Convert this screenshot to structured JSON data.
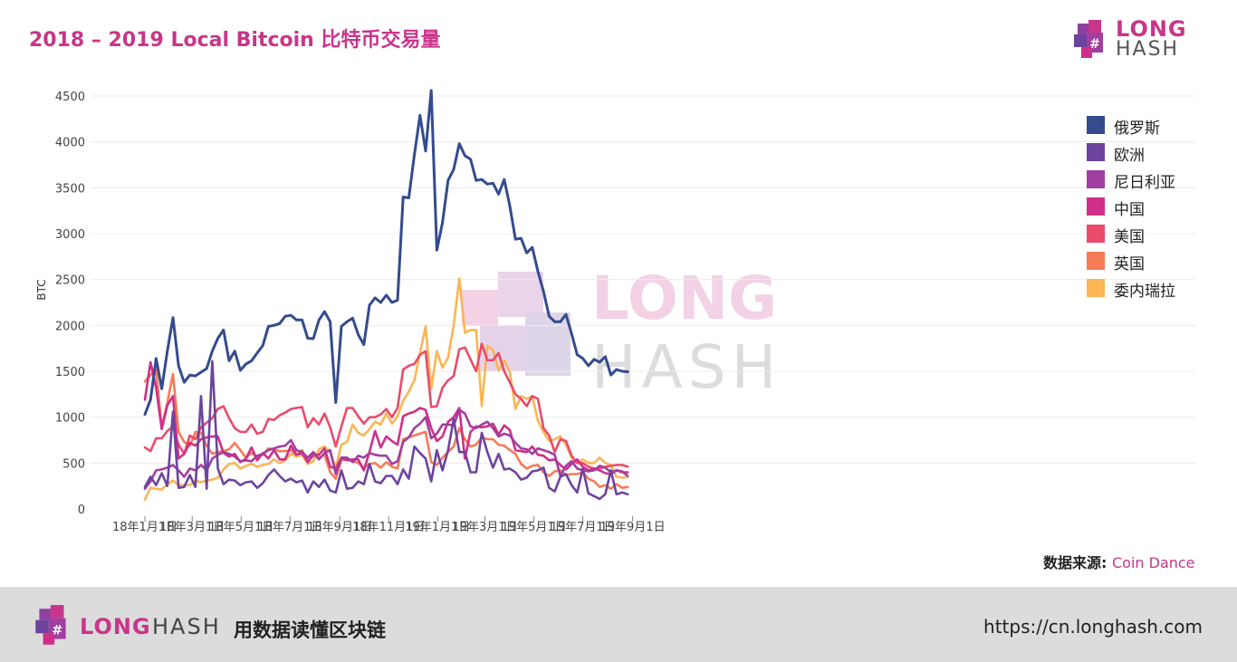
{
  "header": {
    "title": "2018 – 2019 Local Bitcoin 比特币交易量"
  },
  "logo": {
    "brand_long": "LONG",
    "brand_hash": "HASH"
  },
  "watermark": {
    "long": "LONG",
    "hash": "HASH"
  },
  "source": {
    "label": "数据来源: ",
    "value": "Coin Dance"
  },
  "footer": {
    "brand_long": "LONG",
    "brand_hash": "HASH",
    "slogan": "用数据读懂区块链",
    "url": "https://cn.longhash.com"
  },
  "colors": {
    "brand": "#c8358a",
    "footer_bg": "#dcdcdc"
  },
  "chart_data": {
    "type": "line",
    "title": "",
    "xlabel": "",
    "ylabel": "BTC",
    "ylim": [
      0,
      4600
    ],
    "yticks": [
      0,
      500,
      1000,
      1500,
      2000,
      2500,
      3000,
      3500,
      4000,
      4500
    ],
    "xticks": [
      {
        "label": "18年1月1日",
        "week": 0
      },
      {
        "label": "18年3月1日",
        "week": 8.43
      },
      {
        "label": "18年5月1日",
        "week": 17.14
      },
      {
        "label": "18年7月1日",
        "week": 25.86
      },
      {
        "label": "18年9月1日",
        "week": 34.71
      },
      {
        "label": "18年11月1日",
        "week": 43.43
      },
      {
        "label": "19年1月1日",
        "week": 52.14
      },
      {
        "label": "19年3月1日",
        "week": 60.57
      },
      {
        "label": "19年5月1日",
        "week": 69.29
      },
      {
        "label": "19年7月1日",
        "week": 78
      },
      {
        "label": "19年9月1日",
        "week": 86.86
      }
    ],
    "grid": true,
    "legend_position": "top-right",
    "series": [
      {
        "name": "俄罗斯",
        "color": "#344b8e",
        "values": [
          1030,
          1190,
          1640,
          1310,
          1720,
          2085,
          1560,
          1380,
          1460,
          1450,
          1490,
          1530,
          1720,
          1860,
          1950,
          1615,
          1720,
          1510,
          1580,
          1615,
          1700,
          1780,
          1990,
          2000,
          2020,
          2100,
          2110,
          2060,
          2060,
          1860,
          1855,
          2060,
          2150,
          2040,
          1160,
          1990,
          2040,
          2080,
          1900,
          1790,
          2220,
          2300,
          2250,
          2330,
          2250,
          2275,
          3400,
          3390,
          3860,
          4290,
          3900,
          4560,
          2820,
          3120,
          3580,
          3700,
          3980,
          3850,
          3810,
          3580,
          3590,
          3540,
          3550,
          3430,
          3590,
          3300,
          2940,
          2950,
          2790,
          2850,
          2590,
          2370,
          2100,
          2040,
          2040,
          2120,
          1910,
          1680,
          1640,
          1560,
          1630,
          1600,
          1660,
          1460,
          1520,
          1500,
          1495
        ]
      },
      {
        "name": "欧洲",
        "color": "#6c449e",
        "values": [
          240,
          350,
          260,
          390,
          250,
          1060,
          230,
          240,
          370,
          240,
          1230,
          220,
          1610,
          440,
          270,
          320,
          310,
          260,
          290,
          300,
          230,
          280,
          370,
          430,
          360,
          300,
          330,
          290,
          310,
          180,
          300,
          240,
          320,
          200,
          180,
          420,
          220,
          230,
          300,
          270,
          490,
          300,
          280,
          360,
          360,
          270,
          430,
          330,
          680,
          610,
          550,
          300,
          640,
          420,
          640,
          980,
          620,
          620,
          400,
          400,
          830,
          620,
          450,
          600,
          430,
          440,
          400,
          320,
          340,
          410,
          420,
          450,
          230,
          190,
          350,
          380,
          260,
          180,
          440,
          170,
          140,
          110,
          160,
          420,
          160,
          180,
          160
        ]
      },
      {
        "name": "尼日利亚",
        "color": "#a03f9f",
        "values": [
          220,
          300,
          420,
          430,
          450,
          480,
          420,
          350,
          440,
          420,
          480,
          420,
          550,
          590,
          620,
          600,
          570,
          520,
          530,
          520,
          580,
          600,
          640,
          660,
          680,
          690,
          750,
          640,
          620,
          560,
          620,
          540,
          610,
          640,
          380,
          560,
          560,
          510,
          580,
          560,
          610,
          590,
          580,
          580,
          490,
          520,
          730,
          780,
          880,
          930,
          1000,
          770,
          820,
          920,
          920,
          910,
          1080,
          1040,
          900,
          880,
          920,
          950,
          880,
          790,
          820,
          800,
          720,
          660,
          650,
          600,
          660,
          640,
          620,
          590,
          360,
          470,
          520,
          440,
          420,
          410,
          420,
          470,
          450,
          400,
          420,
          410,
          360
        ]
      },
      {
        "name": "中国",
        "color": "#cf2f89",
        "values": [
          1190,
          1600,
          1320,
          870,
          1130,
          1230,
          550,
          600,
          720,
          690,
          760,
          780,
          790,
          790,
          610,
          570,
          600,
          510,
          550,
          670,
          530,
          610,
          550,
          640,
          540,
          540,
          690,
          590,
          610,
          510,
          590,
          590,
          660,
          460,
          440,
          560,
          530,
          540,
          540,
          420,
          620,
          850,
          670,
          790,
          740,
          700,
          1010,
          1040,
          1060,
          1100,
          1080,
          880,
          740,
          790,
          950,
          1000,
          1100,
          550,
          840,
          900,
          890,
          900,
          930,
          810,
          910,
          860,
          640,
          630,
          620,
          680,
          590,
          580,
          530,
          540,
          480,
          430,
          490,
          540,
          460,
          420,
          440,
          420,
          390,
          380,
          420,
          400,
          400
        ]
      },
      {
        "name": "美国",
        "color": "#ea4b6b",
        "values": [
          670,
          630,
          770,
          770,
          850,
          900,
          700,
          600,
          800,
          760,
          890,
          940,
          990,
          1090,
          1120,
          990,
          880,
          840,
          840,
          920,
          820,
          840,
          980,
          970,
          1020,
          1050,
          1090,
          1100,
          1110,
          890,
          990,
          920,
          1040,
          890,
          680,
          900,
          1100,
          1100,
          1010,
          930,
          1000,
          1000,
          1030,
          1090,
          1000,
          1100,
          1520,
          1560,
          1580,
          1680,
          1720,
          1110,
          1120,
          1320,
          1400,
          1450,
          1740,
          1760,
          1630,
          1500,
          1800,
          1620,
          1620,
          1700,
          1500,
          1380,
          1250,
          1200,
          1120,
          1230,
          1200,
          880,
          800,
          620,
          760,
          740,
          580,
          500,
          500,
          460,
          440,
          440,
          460,
          470,
          480,
          480,
          460
        ]
      },
      {
        "name": "英国",
        "color": "#f57b57",
        "values": [
          1390,
          1460,
          1520,
          890,
          1160,
          1470,
          840,
          730,
          690,
          840,
          830,
          690,
          600,
          620,
          630,
          650,
          720,
          640,
          560,
          610,
          560,
          590,
          660,
          650,
          630,
          630,
          640,
          590,
          640,
          520,
          580,
          560,
          590,
          400,
          330,
          530,
          540,
          520,
          500,
          450,
          490,
          500,
          450,
          510,
          460,
          440,
          760,
          780,
          800,
          820,
          840,
          510,
          480,
          560,
          620,
          680,
          880,
          760,
          680,
          700,
          780,
          760,
          760,
          700,
          690,
          640,
          600,
          490,
          440,
          470,
          480,
          400,
          360,
          410,
          420,
          370,
          380,
          380,
          400,
          330,
          300,
          240,
          260,
          220,
          270,
          230,
          240
        ]
      },
      {
        "name": "委内瑞拉",
        "color": "#fbb554",
        "values": [
          100,
          230,
          220,
          210,
          270,
          310,
          260,
          260,
          260,
          310,
          290,
          310,
          320,
          340,
          430,
          490,
          500,
          440,
          470,
          490,
          460,
          480,
          490,
          540,
          500,
          530,
          600,
          570,
          590,
          490,
          520,
          650,
          680,
          620,
          450,
          700,
          730,
          920,
          830,
          800,
          870,
          950,
          920,
          1040,
          930,
          1010,
          1180,
          1280,
          1400,
          1700,
          1990,
          1310,
          1720,
          1540,
          1650,
          2000,
          2510,
          1920,
          1950,
          1950,
          1120,
          1780,
          1730,
          1510,
          1620,
          1490,
          1090,
          1230,
          1200,
          1230,
          960,
          840,
          740,
          760,
          790,
          700,
          560,
          500,
          540,
          500,
          500,
          560,
          500,
          480,
          350,
          340,
          350
        ]
      }
    ]
  }
}
